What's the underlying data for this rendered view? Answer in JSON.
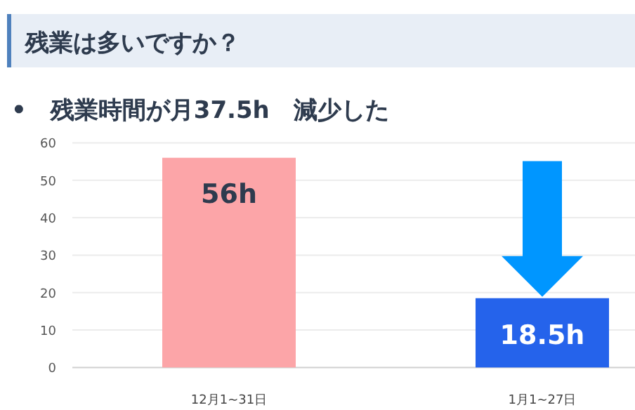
{
  "chart_data": {
    "type": "bar",
    "title": "残業は多いですか？",
    "subtitle": "•　残業時間が月37.5h　減少した",
    "categories": [
      "12月1~31日",
      "1月1~27日"
    ],
    "values": [
      56,
      18.5
    ],
    "colors": [
      "#fca5a8",
      "#2563eb"
    ],
    "value_labels": [
      "56h",
      "18.5h"
    ],
    "ylim": [
      0,
      60
    ],
    "yticks": [
      0,
      10,
      20,
      30,
      40,
      50,
      60
    ],
    "grid": "y"
  }
}
